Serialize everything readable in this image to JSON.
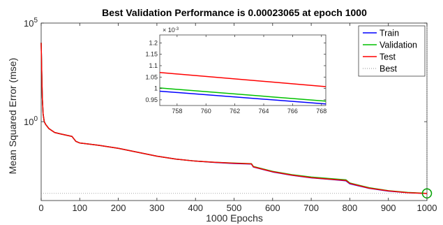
{
  "chart_data": {
    "type": "line",
    "title": "Best Validation Performance is 0.00023065 at epoch 1000",
    "xlabel": "1000 Epochs",
    "ylabel": "Mean Squared Error  (mse)",
    "xlim": [
      0,
      1000
    ],
    "yscale": "log",
    "ylim_log10": [
      -4,
      5
    ],
    "x_ticks": [
      "0",
      "100",
      "200",
      "300",
      "400",
      "500",
      "600",
      "700",
      "800",
      "900",
      "1000"
    ],
    "y_ticks": [
      {
        "base": "10",
        "exp": "5",
        "log10": 5
      },
      {
        "base": "10",
        "exp": "0",
        "log10": 0
      }
    ],
    "grid": false,
    "legend_position": "top-right",
    "best": {
      "epoch": 1000,
      "value": 0.00023065
    },
    "series": [
      {
        "name": "Train",
        "color": "#0000ff",
        "x": [
          0,
          1,
          2,
          3,
          5,
          8,
          12,
          20,
          35,
          50,
          80,
          90,
          100,
          150,
          200,
          250,
          300,
          350,
          400,
          450,
          500,
          545,
          550,
          600,
          650,
          700,
          750,
          790,
          800,
          850,
          900,
          950,
          1000
        ],
        "log10_y": [
          4.0,
          3.0,
          2.0,
          1.2,
          0.4,
          0.0,
          -0.15,
          -0.35,
          -0.55,
          -0.62,
          -0.75,
          -1.0,
          -1.08,
          -1.2,
          -1.35,
          -1.55,
          -1.75,
          -1.9,
          -2.0,
          -2.07,
          -2.12,
          -2.15,
          -2.3,
          -2.55,
          -2.72,
          -2.85,
          -2.93,
          -3.0,
          -3.15,
          -3.38,
          -3.52,
          -3.6,
          -3.64
        ]
      },
      {
        "name": "Validation",
        "color": "#00c000",
        "x": [
          0,
          1,
          2,
          3,
          5,
          8,
          12,
          20,
          35,
          50,
          80,
          90,
          100,
          150,
          200,
          250,
          300,
          350,
          400,
          450,
          500,
          545,
          550,
          600,
          650,
          700,
          750,
          790,
          800,
          850,
          900,
          950,
          1000
        ],
        "log10_y": [
          4.0,
          3.0,
          2.0,
          1.2,
          0.4,
          0.0,
          -0.15,
          -0.35,
          -0.55,
          -0.62,
          -0.75,
          -1.0,
          -1.08,
          -1.2,
          -1.35,
          -1.55,
          -1.75,
          -1.9,
          -2.0,
          -2.06,
          -2.1,
          -2.13,
          -2.27,
          -2.52,
          -2.69,
          -2.81,
          -2.89,
          -2.95,
          -3.11,
          -3.35,
          -3.5,
          -3.59,
          -3.637
        ]
      },
      {
        "name": "Test",
        "color": "#ff0000",
        "x": [
          0,
          1,
          2,
          3,
          5,
          8,
          12,
          20,
          35,
          50,
          80,
          90,
          100,
          150,
          200,
          250,
          300,
          350,
          400,
          450,
          500,
          545,
          550,
          600,
          650,
          700,
          750,
          790,
          800,
          850,
          900,
          950,
          1000
        ],
        "log10_y": [
          4.0,
          3.0,
          2.0,
          1.2,
          0.4,
          0.0,
          -0.15,
          -0.35,
          -0.55,
          -0.62,
          -0.75,
          -1.0,
          -1.08,
          -1.2,
          -1.35,
          -1.55,
          -1.75,
          -1.9,
          -2.0,
          -2.06,
          -2.11,
          -2.14,
          -2.29,
          -2.54,
          -2.71,
          -2.84,
          -2.92,
          -2.98,
          -3.13,
          -3.37,
          -3.51,
          -3.6,
          -3.64
        ]
      }
    ],
    "legend": [
      {
        "label": "Train",
        "color": "#0000ff",
        "style": "solid"
      },
      {
        "label": "Validation",
        "color": "#00c000",
        "style": "solid"
      },
      {
        "label": "Test",
        "color": "#ff0000",
        "style": "solid"
      },
      {
        "label": "Best",
        "color": "#909090",
        "style": "dotted"
      }
    ],
    "inset": {
      "xlim": [
        756.8,
        768.3
      ],
      "ylim": [
        0.925,
        1.235
      ],
      "x_ticks": [
        "758",
        "760",
        "762",
        "764",
        "766",
        "768"
      ],
      "y_ticks": [
        "0.95",
        "1",
        "1.05",
        "1.1",
        "1.15",
        "1.2"
      ],
      "y_multiplier": "× 10",
      "y_multiplier_exp": "-3",
      "series": [
        {
          "name": "Train",
          "color": "#0000ff",
          "x": [
            756.8,
            768.3
          ],
          "y": [
            0.988,
            0.932
          ]
        },
        {
          "name": "Validation",
          "color": "#00c000",
          "x": [
            756.8,
            768.3
          ],
          "y": [
            1.002,
            0.944
          ]
        },
        {
          "name": "Test",
          "color": "#ff0000",
          "x": [
            756.8,
            768.3
          ],
          "y": [
            1.07,
            1.008
          ]
        }
      ]
    }
  }
}
